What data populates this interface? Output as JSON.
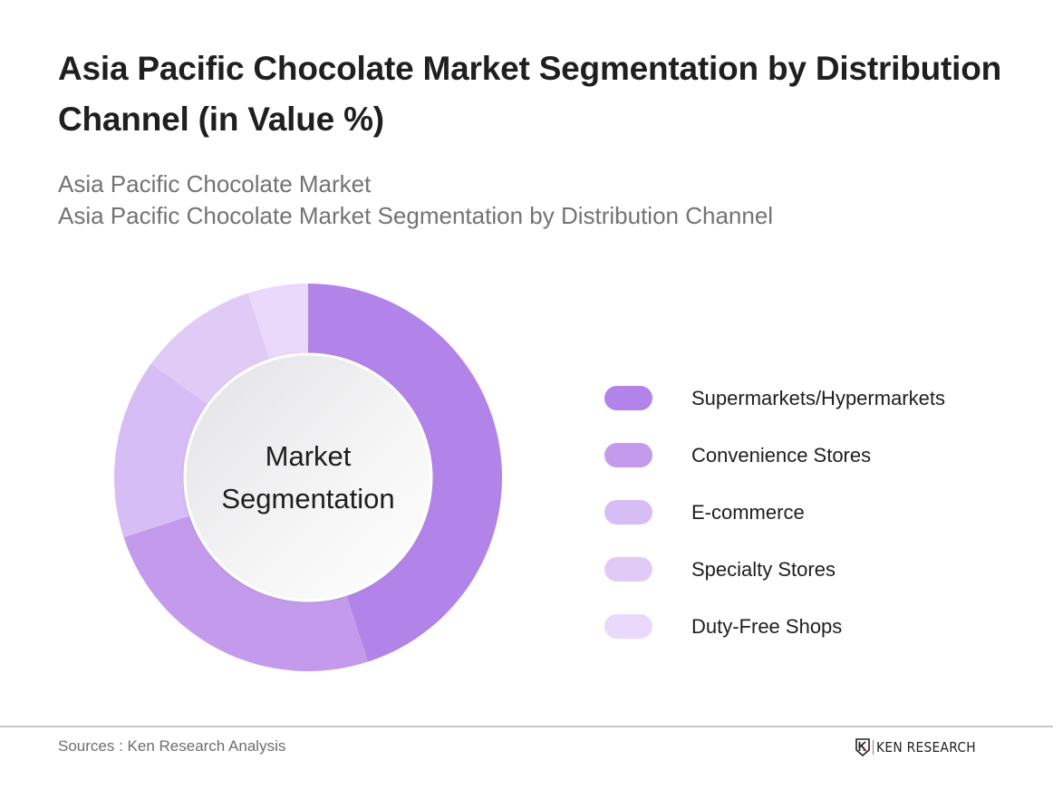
{
  "header": {
    "title": "Asia Pacific Chocolate Market Segmentation by Distribution Channel (in Value %)",
    "subtitle_lines": [
      "Asia Pacific Chocolate Market",
      "Asia Pacific Chocolate Market Segmentation by Distribution Channel"
    ]
  },
  "donut": {
    "center_label_lines": [
      "Market",
      "Segmentation"
    ]
  },
  "legend": {
    "items": [
      {
        "label": "Supermarkets/Hypermarkets",
        "color": "#b283e8"
      },
      {
        "label": "Convenience Stores",
        "color": "#c49bec"
      },
      {
        "label": "E-commerce",
        "color": "#d7bdf5"
      },
      {
        "label": "Specialty Stores",
        "color": "#e0cbf7"
      },
      {
        "label": "Duty-Free Shops",
        "color": "#ead9fb"
      }
    ]
  },
  "footer": {
    "sources": "Sources : Ken Research Analysis",
    "logo_text": "KEN RESEARCH",
    "logo_icon": "ken-research-k-shield-icon"
  },
  "chart_data": {
    "type": "pie",
    "variant": "donut",
    "title": "Asia Pacific Chocolate Market Segmentation by Distribution Channel (in Value %)",
    "subtitle": "Asia Pacific Chocolate Market Segmentation by Distribution Channel",
    "center_label": "Market Segmentation",
    "categories": [
      "Supermarkets/Hypermarkets",
      "Convenience Stores",
      "E-commerce",
      "Specialty Stores",
      "Duty-Free Shops"
    ],
    "values": [
      45,
      25,
      15,
      10,
      5
    ],
    "unit": "%",
    "colors": [
      "#b283e8",
      "#c49bec",
      "#d7bdf5",
      "#e0cbf7",
      "#ead9fb"
    ],
    "start_angle": "12 o'clock, clockwise",
    "legend_position": "right",
    "data_labels": false,
    "source": "Sources : Ken Research Analysis"
  }
}
